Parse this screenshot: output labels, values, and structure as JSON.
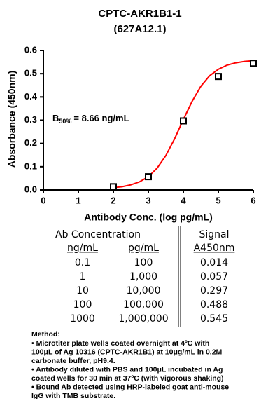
{
  "chart_data": {
    "type": "scatter",
    "title": [
      "CPTC-AKR1B1-1",
      "(627A12.1)"
    ],
    "x_label": "Antibody Conc. (log pg/mL)",
    "y_label": "Absorbance (450nm)",
    "annotation": [
      "B",
      "50%",
      "= 8.66 ng/mL"
    ],
    "x": [
      2,
      3,
      4,
      5,
      6
    ],
    "values": [
      0.014,
      0.057,
      0.297,
      0.488,
      0.545
    ],
    "marker_color": "#000000",
    "fit": {
      "color": "#ff0000",
      "x": [
        2,
        2.25,
        2.5,
        2.75,
        3,
        3.25,
        3.5,
        3.75,
        4,
        4.25,
        4.5,
        4.75,
        5,
        5.25,
        5.5,
        5.75,
        6
      ],
      "values": [
        0.01,
        0.014,
        0.022,
        0.035,
        0.057,
        0.094,
        0.148,
        0.22,
        0.303,
        0.381,
        0.446,
        0.491,
        0.519,
        0.537,
        0.547,
        0.553,
        0.556
      ]
    },
    "xlim": [
      0,
      6
    ],
    "xticks": [
      0,
      1,
      2,
      3,
      4,
      5,
      6
    ],
    "ylim": [
      0,
      0.6
    ],
    "yticks": [
      {
        "value": 0,
        "label": "0.0"
      },
      0.1,
      0.2,
      0.3,
      0.4,
      0.5,
      0.6
    ],
    "grid": false
  },
  "table": {
    "headers": [
      "Ab Concentration",
      "Signal"
    ],
    "subheaders": [
      "ng/mL",
      "pg/mL",
      "A450nm"
    ],
    "rows": [
      [
        "0.1",
        "100",
        "0.014"
      ],
      [
        "1",
        "1,000",
        "0.057"
      ],
      [
        "10",
        "10,000",
        "0.297"
      ],
      [
        "100",
        "100,000",
        "0.488"
      ],
      [
        "1000",
        "1,000,000",
        "0.545"
      ]
    ]
  },
  "method": {
    "title": "Method:",
    "lines": [
      "• Microtiter plate wells coated overnight at 4ºC  with",
      "100μL of Ag 10316 (CPTC-AKR1B1) at 10μg/mL in 0.2M",
      "carbonate buffer, pH9.4.",
      "• Antibody diluted with PBS and 100μL incubated in Ag",
      "coated wells for 30 min at 37ºC (with vigorous shaking)",
      "• Bound Ab detected using HRP-labeled goat anti-mouse",
      "IgG with TMB substrate."
    ]
  }
}
